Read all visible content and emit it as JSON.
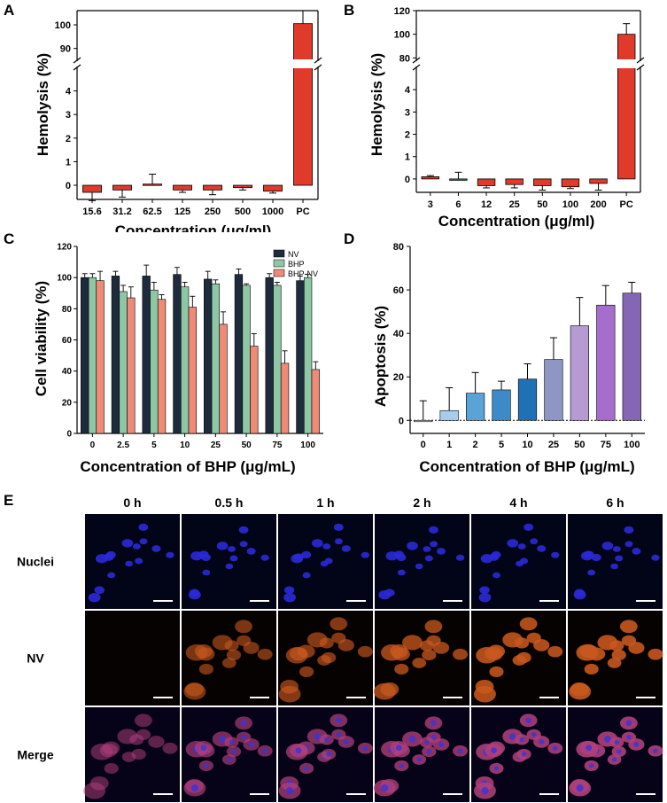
{
  "panels": {
    "a": "A",
    "b": "B",
    "c": "C",
    "d": "D",
    "e": "E"
  },
  "chart_data": [
    {
      "id": "A",
      "type": "bar",
      "title": "",
      "xlabel": "Concentration (μg/ml)",
      "ylabel": "Hemolysis (%)",
      "categories": [
        "15.6",
        "31.2",
        "62.5",
        "125",
        "250",
        "500",
        "1000",
        "PC"
      ],
      "values": [
        -0.3,
        -0.2,
        0.05,
        -0.2,
        -0.2,
        -0.1,
        -0.25,
        100.5
      ],
      "errors": [
        0.35,
        0.3,
        0.42,
        0.1,
        0.2,
        0.1,
        0.08,
        5.5
      ],
      "axis_break": {
        "lower_range": [
          -0.6,
          5
        ],
        "upper_range": [
          85,
          106
        ]
      },
      "yticks_lower": [
        "0",
        "1",
        "2",
        "3",
        "4"
      ],
      "yticks_upper": [
        "90",
        "100"
      ],
      "color": "#e03a2a"
    },
    {
      "id": "B",
      "type": "bar",
      "title": "",
      "xlabel": "Concentration (μg/ml)",
      "ylabel": "Hemolysis (%)",
      "categories": [
        "3",
        "6",
        "12",
        "25",
        "50",
        "100",
        "200",
        "PC"
      ],
      "values": [
        0.1,
        0.0,
        -0.3,
        -0.25,
        -0.3,
        -0.35,
        -0.2,
        100.0
      ],
      "errors": [
        0.05,
        0.3,
        0.1,
        0.15,
        0.2,
        0.08,
        0.3,
        9.0
      ],
      "axis_break": {
        "lower_range": [
          -0.6,
          5
        ],
        "upper_range": [
          78,
          120
        ]
      },
      "yticks_lower": [
        "0",
        "1",
        "2",
        "3",
        "4"
      ],
      "yticks_upper": [
        "80",
        "100",
        "120"
      ],
      "color": "#e03a2a"
    },
    {
      "id": "C",
      "type": "bar",
      "title": "",
      "xlabel": "Concentration of BHP (μg/mL)",
      "ylabel": "Cell viability (%)",
      "categories": [
        "0",
        "2.5",
        "5",
        "10",
        "25",
        "50",
        "75",
        "100"
      ],
      "ylim": [
        0,
        120
      ],
      "yticks": [
        "0",
        "20",
        "40",
        "60",
        "80",
        "100",
        "120"
      ],
      "legend_position": "top-right",
      "series": [
        {
          "name": "NV",
          "color": "#1d2b3c",
          "values": [
            100,
            101,
            101,
            102,
            99,
            102,
            100,
            98
          ],
          "errors": [
            2.5,
            3,
            7,
            4.5,
            5,
            3.5,
            2.5,
            3
          ]
        },
        {
          "name": "BHP",
          "color": "#8ec7a6",
          "values": [
            100,
            91,
            92,
            94,
            96,
            95,
            95,
            100
          ],
          "errors": [
            2.5,
            4,
            5,
            3,
            2.5,
            1,
            2,
            2
          ]
        },
        {
          "name": "BHP-NV",
          "color": "#ef8a76",
          "values": [
            98,
            87,
            86,
            81,
            70,
            56,
            45,
            41
          ],
          "errors": [
            6,
            7,
            3,
            7,
            8,
            8,
            8,
            5
          ]
        }
      ]
    },
    {
      "id": "D",
      "type": "bar",
      "title": "",
      "xlabel": "Concentration of BHP (μg/mL)",
      "ylabel": "Apoptosis (%)",
      "categories": [
        "0",
        "1",
        "2",
        "5",
        "10",
        "25",
        "50",
        "75",
        "100"
      ],
      "values": [
        -0.5,
        4.5,
        12.5,
        14,
        19,
        28,
        43.5,
        53,
        58.5
      ],
      "errors": [
        9,
        10.5,
        9.5,
        4,
        7,
        10,
        13,
        9,
        5
      ],
      "colors": [
        "#e9f2fb",
        "#a8cdea",
        "#5aa3d6",
        "#3c8ac7",
        "#2070b4",
        "#8e97c3",
        "#b69bd3",
        "#a66dcc",
        "#8466b4"
      ],
      "ylim": [
        -6,
        80
      ],
      "yticks": [
        "0",
        "20",
        "40",
        "60",
        "80"
      ],
      "reference_line": 0
    }
  ],
  "microscopy": {
    "columns": [
      "0 h",
      "0.5 h",
      "1 h",
      "2 h",
      "4 h",
      "6 h"
    ],
    "rows": [
      {
        "label": "Nuclei",
        "bg": "#020418",
        "cell": "#2a2ad8",
        "intensity": [
          1,
          1,
          1,
          1,
          1,
          1
        ]
      },
      {
        "label": "NV",
        "bg": "#070202",
        "cell": "#c8581e",
        "intensity": [
          0,
          0.45,
          0.55,
          0.75,
          0.95,
          1
        ]
      },
      {
        "label": "Merge",
        "bg": "#060318",
        "cell": "#b0407a",
        "intensity": [
          0.3,
          0.6,
          0.7,
          0.8,
          0.95,
          1
        ]
      }
    ]
  }
}
